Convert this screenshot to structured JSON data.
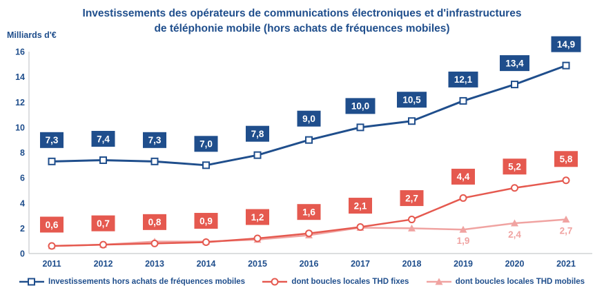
{
  "title_lines": [
    "Investissements des opérateurs de communications électroniques et d'infrastructures",
    "de téléphonie mobile (hors achats de fréquences mobiles)"
  ],
  "y_axis_label": "Milliards d'€",
  "colors": {
    "blue": "#1F4E8C",
    "red": "#E5594F",
    "pink": "#F0A3A1",
    "axis": "#C6C9CC"
  },
  "chart_data": {
    "type": "line",
    "title": "Investissements des opérateurs de communications électroniques et d'infrastructures de téléphonie mobile (hors achats de fréquences mobiles)",
    "ylabel": "Milliards d'€",
    "ylim": [
      0,
      16
    ],
    "yticks": [
      0,
      2,
      4,
      6,
      8,
      10,
      12,
      14,
      16
    ],
    "grid": false,
    "legend_position": "bottom",
    "categories": [
      "2011",
      "2012",
      "2013",
      "2014",
      "2015",
      "2016",
      "2017",
      "2018",
      "2019",
      "2020",
      "2021"
    ],
    "series": [
      {
        "name": "Investissements hors achats de fréquences mobiles",
        "marker": "square",
        "color": "#1F4E8C",
        "label_style": "box",
        "values": [
          7.3,
          7.4,
          7.3,
          7.0,
          7.8,
          9.0,
          10.0,
          10.5,
          12.1,
          13.4,
          14.9
        ],
        "labels": [
          "7,3",
          "7,4",
          "7,3",
          "7,0",
          "7,8",
          "9,0",
          "10,0",
          "10,5",
          "12,1",
          "13,4",
          "14,9"
        ]
      },
      {
        "name": "dont boucles locales THD fixes",
        "marker": "circle",
        "color": "#E5594F",
        "label_style": "box",
        "values": [
          0.6,
          0.7,
          0.8,
          0.9,
          1.2,
          1.6,
          2.1,
          2.7,
          4.4,
          5.2,
          5.8
        ],
        "labels": [
          "0,6",
          "0,7",
          "0,8",
          "0,9",
          "1,2",
          "1,6",
          "2,1",
          "2,7",
          "4,4",
          "5,2",
          "5,8"
        ]
      },
      {
        "name": "dont boucles locales THD mobiles",
        "marker": "triangle",
        "color": "#F0A3A1",
        "label_style": "text-below",
        "values": [
          0.6,
          0.7,
          0.95,
          0.95,
          1.1,
          1.45,
          2.05,
          2.0,
          1.9,
          2.4,
          2.7
        ],
        "labels": [
          null,
          null,
          null,
          null,
          null,
          null,
          null,
          null,
          "1,9",
          "2,4",
          "2,7"
        ]
      }
    ]
  }
}
